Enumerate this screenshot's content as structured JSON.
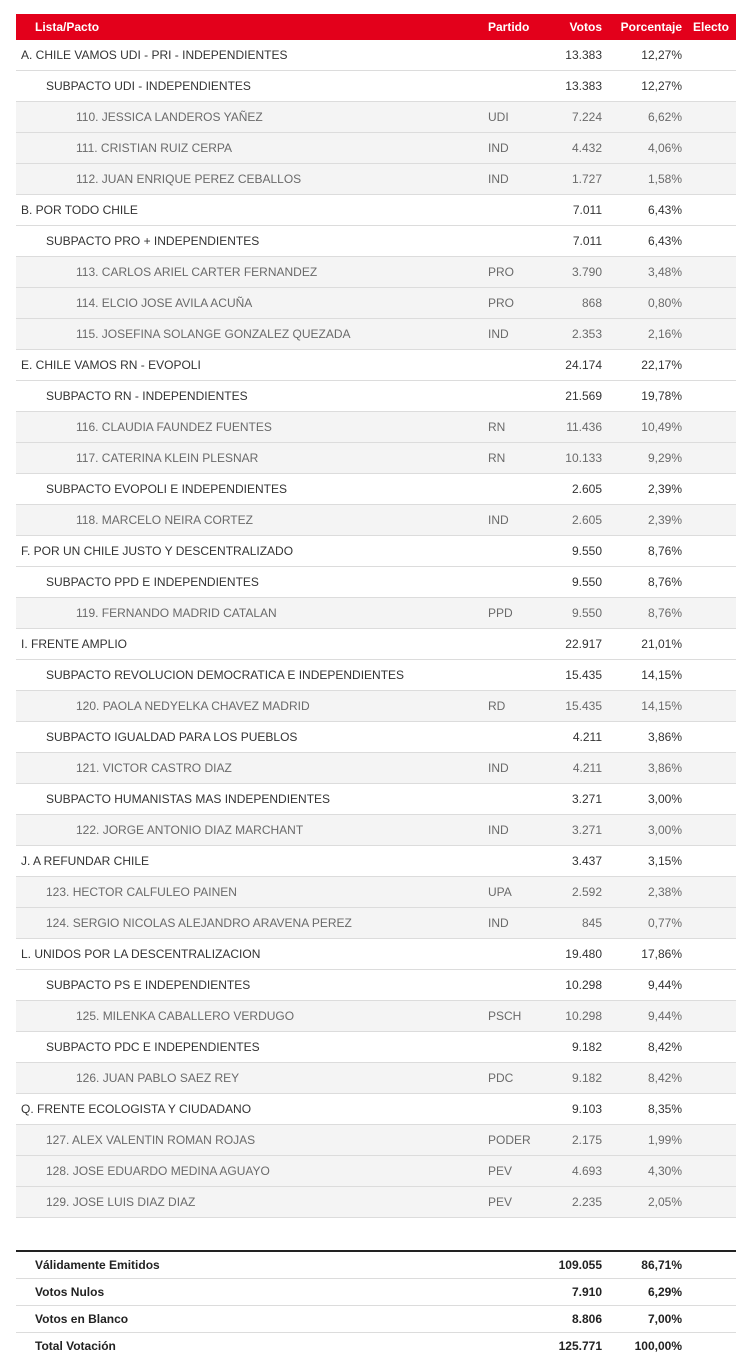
{
  "table": {
    "headers": {
      "name": "Lista/Pacto",
      "party": "Partido",
      "votes": "Votos",
      "pct": "Porcentaje",
      "electo": "Electo"
    },
    "rows": [
      {
        "type": "lista",
        "name": "A. CHILE VAMOS UDI - PRI - INDEPENDIENTES",
        "party": "",
        "votes": "13.383",
        "pct": "12,27%"
      },
      {
        "type": "subpacto",
        "name": "SUBPACTO UDI - INDEPENDIENTES",
        "party": "",
        "votes": "13.383",
        "pct": "12,27%"
      },
      {
        "type": "candidato",
        "name": "110. JESSICA LANDEROS YAÑEZ",
        "party": "UDI",
        "votes": "7.224",
        "pct": "6,62%"
      },
      {
        "type": "candidato",
        "name": "111. CRISTIAN RUIZ CERPA",
        "party": "IND",
        "votes": "4.432",
        "pct": "4,06%"
      },
      {
        "type": "candidato",
        "name": "112. JUAN ENRIQUE PEREZ CEBALLOS",
        "party": "IND",
        "votes": "1.727",
        "pct": "1,58%"
      },
      {
        "type": "lista",
        "name": "B. POR TODO CHILE",
        "party": "",
        "votes": "7.011",
        "pct": "6,43%"
      },
      {
        "type": "subpacto",
        "name": "SUBPACTO PRO + INDEPENDIENTES",
        "party": "",
        "votes": "7.011",
        "pct": "6,43%"
      },
      {
        "type": "candidato",
        "name": "113. CARLOS ARIEL CARTER FERNANDEZ",
        "party": "PRO",
        "votes": "3.790",
        "pct": "3,48%"
      },
      {
        "type": "candidato",
        "name": "114. ELCIO JOSE AVILA ACUÑA",
        "party": "PRO",
        "votes": "868",
        "pct": "0,80%"
      },
      {
        "type": "candidato",
        "name": "115. JOSEFINA SOLANGE GONZALEZ QUEZADA",
        "party": "IND",
        "votes": "2.353",
        "pct": "2,16%"
      },
      {
        "type": "lista",
        "name": "E. CHILE VAMOS RN - EVOPOLI",
        "party": "",
        "votes": "24.174",
        "pct": "22,17%"
      },
      {
        "type": "subpacto",
        "name": "SUBPACTO RN - INDEPENDIENTES",
        "party": "",
        "votes": "21.569",
        "pct": "19,78%"
      },
      {
        "type": "candidato",
        "name": "116. CLAUDIA FAUNDEZ FUENTES",
        "party": "RN",
        "votes": "11.436",
        "pct": "10,49%"
      },
      {
        "type": "candidato",
        "name": "117. CATERINA KLEIN PLESNAR",
        "party": "RN",
        "votes": "10.133",
        "pct": "9,29%"
      },
      {
        "type": "subpacto",
        "name": "SUBPACTO EVOPOLI E INDEPENDIENTES",
        "party": "",
        "votes": "2.605",
        "pct": "2,39%"
      },
      {
        "type": "candidato",
        "name": "118. MARCELO NEIRA CORTEZ",
        "party": "IND",
        "votes": "2.605",
        "pct": "2,39%"
      },
      {
        "type": "lista",
        "name": "F. POR UN CHILE JUSTO Y DESCENTRALIZADO",
        "party": "",
        "votes": "9.550",
        "pct": "8,76%"
      },
      {
        "type": "subpacto",
        "name": "SUBPACTO PPD E INDEPENDIENTES",
        "party": "",
        "votes": "9.550",
        "pct": "8,76%"
      },
      {
        "type": "candidato",
        "name": "119. FERNANDO MADRID CATALAN",
        "party": "PPD",
        "votes": "9.550",
        "pct": "8,76%"
      },
      {
        "type": "lista",
        "name": "I. FRENTE AMPLIO",
        "party": "",
        "votes": "22.917",
        "pct": "21,01%"
      },
      {
        "type": "subpacto",
        "name": "SUBPACTO REVOLUCION DEMOCRATICA E INDEPENDIENTES",
        "party": "",
        "votes": "15.435",
        "pct": "14,15%"
      },
      {
        "type": "candidato",
        "name": "120. PAOLA NEDYELKA CHAVEZ MADRID",
        "party": "RD",
        "votes": "15.435",
        "pct": "14,15%"
      },
      {
        "type": "subpacto",
        "name": "SUBPACTO IGUALDAD PARA LOS PUEBLOS",
        "party": "",
        "votes": "4.211",
        "pct": "3,86%"
      },
      {
        "type": "candidato",
        "name": "121. VICTOR CASTRO DIAZ",
        "party": "IND",
        "votes": "4.211",
        "pct": "3,86%"
      },
      {
        "type": "subpacto",
        "name": "SUBPACTO HUMANISTAS MAS INDEPENDIENTES",
        "party": "",
        "votes": "3.271",
        "pct": "3,00%"
      },
      {
        "type": "candidato",
        "name": "122. JORGE ANTONIO DIAZ MARCHANT",
        "party": "IND",
        "votes": "3.271",
        "pct": "3,00%"
      },
      {
        "type": "lista",
        "name": "J. A REFUNDAR CHILE",
        "party": "",
        "votes": "3.437",
        "pct": "3,15%"
      },
      {
        "type": "cand-top",
        "name": "123. HECTOR CALFULEO PAINEN",
        "party": "UPA",
        "votes": "2.592",
        "pct": "2,38%"
      },
      {
        "type": "cand-top",
        "name": "124. SERGIO NICOLAS ALEJANDRO ARAVENA PEREZ",
        "party": "IND",
        "votes": "845",
        "pct": "0,77%"
      },
      {
        "type": "lista",
        "name": "L. UNIDOS POR LA DESCENTRALIZACION",
        "party": "",
        "votes": "19.480",
        "pct": "17,86%"
      },
      {
        "type": "subpacto",
        "name": "SUBPACTO PS E INDEPENDIENTES",
        "party": "",
        "votes": "10.298",
        "pct": "9,44%"
      },
      {
        "type": "candidato",
        "name": "125. MILENKA CABALLERO VERDUGO",
        "party": "PSCH",
        "votes": "10.298",
        "pct": "9,44%"
      },
      {
        "type": "subpacto",
        "name": "SUBPACTO PDC E INDEPENDIENTES",
        "party": "",
        "votes": "9.182",
        "pct": "8,42%"
      },
      {
        "type": "candidato",
        "name": "126. JUAN PABLO SAEZ REY",
        "party": "PDC",
        "votes": "9.182",
        "pct": "8,42%"
      },
      {
        "type": "lista",
        "name": "Q. FRENTE ECOLOGISTA Y CIUDADANO",
        "party": "",
        "votes": "9.103",
        "pct": "8,35%"
      },
      {
        "type": "cand-top",
        "name": "127. ALEX VALENTIN ROMAN ROJAS",
        "party": "PODER",
        "votes": "2.175",
        "pct": "1,99%"
      },
      {
        "type": "cand-top",
        "name": "128. JOSE EDUARDO MEDINA AGUAYO",
        "party": "PEV",
        "votes": "4.693",
        "pct": "4,30%"
      },
      {
        "type": "cand-top",
        "name": "129. JOSE LUIS DIAZ DIAZ",
        "party": "PEV",
        "votes": "2.235",
        "pct": "2,05%"
      }
    ]
  },
  "totals": [
    {
      "label": "Válidamente Emitidos",
      "votes": "109.055",
      "pct": "86,71%"
    },
    {
      "label": "Votos Nulos",
      "votes": "7.910",
      "pct": "6,29%"
    },
    {
      "label": "Votos en Blanco",
      "votes": "8.806",
      "pct": "7,00%"
    },
    {
      "label": "Total Votación",
      "votes": "125.771",
      "pct": "100,00%"
    }
  ],
  "colors": {
    "header_bg": "#e3001b",
    "candidate_bg": "#f4f4f4"
  }
}
